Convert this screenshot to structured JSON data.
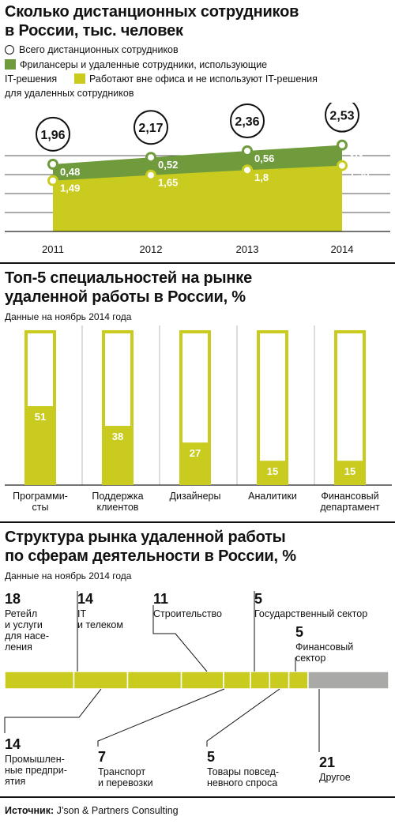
{
  "chart1": {
    "title_line1": "Сколько дистанционных сотрудников",
    "title_line2": "в России, тыс. человек",
    "legend": {
      "total": "Всего дистанционных сотрудников",
      "it_line1": "Фрилансеры и удаленные сотрудники, использующие",
      "it_line2": "IT-решения",
      "non_it_line1": "Работают вне офиса и не используют IT-решения",
      "non_it_line2": "для удаленных сотрудников"
    }
  },
  "chart2": {
    "title_line1": "Топ-5 специальностей на рынке",
    "title_line2": "удаленной работы в России, %",
    "subtitle": "Данные на ноябрь 2014 года"
  },
  "chart3": {
    "title_line1": "Структура рынка удаленной работы",
    "title_line2": "по сферам деятельности в России, %",
    "subtitle": "Данные на ноябрь 2014 года"
  },
  "source": {
    "label": "Источник:",
    "text": " J’son & Partners Consulting"
  },
  "colors": {
    "olive": "#c9cc1f",
    "green": "#6f9b3c",
    "grey": "#a9aaa8",
    "dark": "#111111"
  },
  "chart_data": [
    {
      "type": "area",
      "categories": [
        "2011",
        "2012",
        "2013",
        "2014"
      ],
      "series": [
        {
          "name": "Работают вне офиса и не используют IT-решения для удаленных сотрудников",
          "values": [
            1.49,
            1.65,
            1.8,
            1.93
          ],
          "labels": [
            "1,49",
            "1,65",
            "1,8",
            "1,93"
          ]
        },
        {
          "name": "Фрилансеры и удаленные сотрудники, использующие IT-решения",
          "values": [
            0.48,
            0.52,
            0.56,
            0.6
          ],
          "labels": [
            "0,48",
            "0,52",
            "0,56",
            "0,6"
          ]
        }
      ],
      "totals": {
        "name": "Всего дистанционных сотрудников",
        "values": [
          1.96,
          2.17,
          2.36,
          2.53
        ],
        "labels": [
          "1,96",
          "2,17",
          "2,36",
          "2,53"
        ]
      },
      "stacked": true,
      "ylim": [
        0,
        2.8
      ],
      "grid": true
    },
    {
      "type": "bar",
      "categories": [
        [
          "Программи-",
          "сты"
        ],
        [
          "Поддержка",
          "клиентов"
        ],
        [
          "Дизайнеры"
        ],
        [
          "Аналитики"
        ],
        [
          "Финансовый",
          "департамент"
        ]
      ],
      "values": [
        51,
        38,
        27,
        15,
        15
      ],
      "ylim": [
        0,
        100
      ]
    },
    {
      "type": "bar",
      "orientation": "horizontal-stacked",
      "segments": [
        {
          "value": 18,
          "label": [
            "Ретейл",
            "и услуги",
            "для насе-",
            "ления"
          ],
          "color": "olive"
        },
        {
          "value": 14,
          "label": [
            "IT",
            "и телеком"
          ],
          "color": "olive"
        },
        {
          "value": 14,
          "label": [
            "Промышлен-",
            "ные предпри-",
            "ятия"
          ],
          "color": "olive"
        },
        {
          "value": 11,
          "label": [
            "Строительство"
          ],
          "color": "olive"
        },
        {
          "value": 7,
          "label": [
            "Транспорт",
            "и перевозки"
          ],
          "color": "olive"
        },
        {
          "value": 5,
          "label": [
            "Товары повсед-",
            "невного спроса"
          ],
          "color": "olive"
        },
        {
          "value": 5,
          "label": [
            "Государственный сектор"
          ],
          "color": "olive"
        },
        {
          "value": 5,
          "label": [
            "Финансовый",
            "сектор"
          ],
          "color": "olive"
        },
        {
          "value": 21,
          "label": [
            "Другое"
          ],
          "color": "grey"
        }
      ]
    }
  ]
}
